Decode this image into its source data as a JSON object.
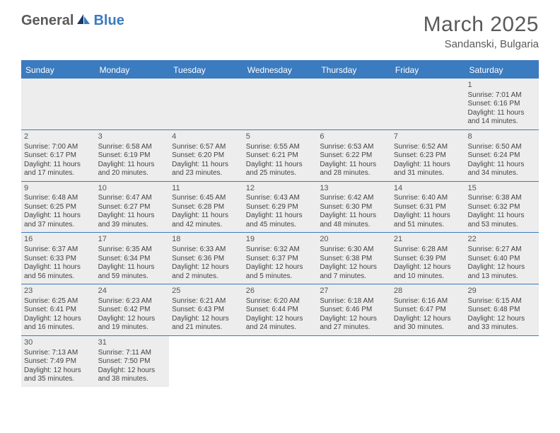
{
  "logo": {
    "part1": "General",
    "part2": "Blue"
  },
  "title": "March 2025",
  "location": "Sandanski, Bulgaria",
  "colors": {
    "brand_blue": "#3b7bbf",
    "gray_text": "#5a5a5a",
    "cell_bg": "#ededed",
    "border": "#3b7bbf"
  },
  "day_headers": [
    "Sunday",
    "Monday",
    "Tuesday",
    "Wednesday",
    "Thursday",
    "Friday",
    "Saturday"
  ],
  "weeks": [
    [
      null,
      null,
      null,
      null,
      null,
      null,
      {
        "n": "1",
        "sr": "Sunrise: 7:01 AM",
        "ss": "Sunset: 6:16 PM",
        "dl1": "Daylight: 11 hours",
        "dl2": "and 14 minutes."
      }
    ],
    [
      {
        "n": "2",
        "sr": "Sunrise: 7:00 AM",
        "ss": "Sunset: 6:17 PM",
        "dl1": "Daylight: 11 hours",
        "dl2": "and 17 minutes."
      },
      {
        "n": "3",
        "sr": "Sunrise: 6:58 AM",
        "ss": "Sunset: 6:19 PM",
        "dl1": "Daylight: 11 hours",
        "dl2": "and 20 minutes."
      },
      {
        "n": "4",
        "sr": "Sunrise: 6:57 AM",
        "ss": "Sunset: 6:20 PM",
        "dl1": "Daylight: 11 hours",
        "dl2": "and 23 minutes."
      },
      {
        "n": "5",
        "sr": "Sunrise: 6:55 AM",
        "ss": "Sunset: 6:21 PM",
        "dl1": "Daylight: 11 hours",
        "dl2": "and 25 minutes."
      },
      {
        "n": "6",
        "sr": "Sunrise: 6:53 AM",
        "ss": "Sunset: 6:22 PM",
        "dl1": "Daylight: 11 hours",
        "dl2": "and 28 minutes."
      },
      {
        "n": "7",
        "sr": "Sunrise: 6:52 AM",
        "ss": "Sunset: 6:23 PM",
        "dl1": "Daylight: 11 hours",
        "dl2": "and 31 minutes."
      },
      {
        "n": "8",
        "sr": "Sunrise: 6:50 AM",
        "ss": "Sunset: 6:24 PM",
        "dl1": "Daylight: 11 hours",
        "dl2": "and 34 minutes."
      }
    ],
    [
      {
        "n": "9",
        "sr": "Sunrise: 6:48 AM",
        "ss": "Sunset: 6:25 PM",
        "dl1": "Daylight: 11 hours",
        "dl2": "and 37 minutes."
      },
      {
        "n": "10",
        "sr": "Sunrise: 6:47 AM",
        "ss": "Sunset: 6:27 PM",
        "dl1": "Daylight: 11 hours",
        "dl2": "and 39 minutes."
      },
      {
        "n": "11",
        "sr": "Sunrise: 6:45 AM",
        "ss": "Sunset: 6:28 PM",
        "dl1": "Daylight: 11 hours",
        "dl2": "and 42 minutes."
      },
      {
        "n": "12",
        "sr": "Sunrise: 6:43 AM",
        "ss": "Sunset: 6:29 PM",
        "dl1": "Daylight: 11 hours",
        "dl2": "and 45 minutes."
      },
      {
        "n": "13",
        "sr": "Sunrise: 6:42 AM",
        "ss": "Sunset: 6:30 PM",
        "dl1": "Daylight: 11 hours",
        "dl2": "and 48 minutes."
      },
      {
        "n": "14",
        "sr": "Sunrise: 6:40 AM",
        "ss": "Sunset: 6:31 PM",
        "dl1": "Daylight: 11 hours",
        "dl2": "and 51 minutes."
      },
      {
        "n": "15",
        "sr": "Sunrise: 6:38 AM",
        "ss": "Sunset: 6:32 PM",
        "dl1": "Daylight: 11 hours",
        "dl2": "and 53 minutes."
      }
    ],
    [
      {
        "n": "16",
        "sr": "Sunrise: 6:37 AM",
        "ss": "Sunset: 6:33 PM",
        "dl1": "Daylight: 11 hours",
        "dl2": "and 56 minutes."
      },
      {
        "n": "17",
        "sr": "Sunrise: 6:35 AM",
        "ss": "Sunset: 6:34 PM",
        "dl1": "Daylight: 11 hours",
        "dl2": "and 59 minutes."
      },
      {
        "n": "18",
        "sr": "Sunrise: 6:33 AM",
        "ss": "Sunset: 6:36 PM",
        "dl1": "Daylight: 12 hours",
        "dl2": "and 2 minutes."
      },
      {
        "n": "19",
        "sr": "Sunrise: 6:32 AM",
        "ss": "Sunset: 6:37 PM",
        "dl1": "Daylight: 12 hours",
        "dl2": "and 5 minutes."
      },
      {
        "n": "20",
        "sr": "Sunrise: 6:30 AM",
        "ss": "Sunset: 6:38 PM",
        "dl1": "Daylight: 12 hours",
        "dl2": "and 7 minutes."
      },
      {
        "n": "21",
        "sr": "Sunrise: 6:28 AM",
        "ss": "Sunset: 6:39 PM",
        "dl1": "Daylight: 12 hours",
        "dl2": "and 10 minutes."
      },
      {
        "n": "22",
        "sr": "Sunrise: 6:27 AM",
        "ss": "Sunset: 6:40 PM",
        "dl1": "Daylight: 12 hours",
        "dl2": "and 13 minutes."
      }
    ],
    [
      {
        "n": "23",
        "sr": "Sunrise: 6:25 AM",
        "ss": "Sunset: 6:41 PM",
        "dl1": "Daylight: 12 hours",
        "dl2": "and 16 minutes."
      },
      {
        "n": "24",
        "sr": "Sunrise: 6:23 AM",
        "ss": "Sunset: 6:42 PM",
        "dl1": "Daylight: 12 hours",
        "dl2": "and 19 minutes."
      },
      {
        "n": "25",
        "sr": "Sunrise: 6:21 AM",
        "ss": "Sunset: 6:43 PM",
        "dl1": "Daylight: 12 hours",
        "dl2": "and 21 minutes."
      },
      {
        "n": "26",
        "sr": "Sunrise: 6:20 AM",
        "ss": "Sunset: 6:44 PM",
        "dl1": "Daylight: 12 hours",
        "dl2": "and 24 minutes."
      },
      {
        "n": "27",
        "sr": "Sunrise: 6:18 AM",
        "ss": "Sunset: 6:46 PM",
        "dl1": "Daylight: 12 hours",
        "dl2": "and 27 minutes."
      },
      {
        "n": "28",
        "sr": "Sunrise: 6:16 AM",
        "ss": "Sunset: 6:47 PM",
        "dl1": "Daylight: 12 hours",
        "dl2": "and 30 minutes."
      },
      {
        "n": "29",
        "sr": "Sunrise: 6:15 AM",
        "ss": "Sunset: 6:48 PM",
        "dl1": "Daylight: 12 hours",
        "dl2": "and 33 minutes."
      }
    ],
    [
      {
        "n": "30",
        "sr": "Sunrise: 7:13 AM",
        "ss": "Sunset: 7:49 PM",
        "dl1": "Daylight: 12 hours",
        "dl2": "and 35 minutes."
      },
      {
        "n": "31",
        "sr": "Sunrise: 7:11 AM",
        "ss": "Sunset: 7:50 PM",
        "dl1": "Daylight: 12 hours",
        "dl2": "and 38 minutes."
      },
      null,
      null,
      null,
      null,
      null
    ]
  ]
}
